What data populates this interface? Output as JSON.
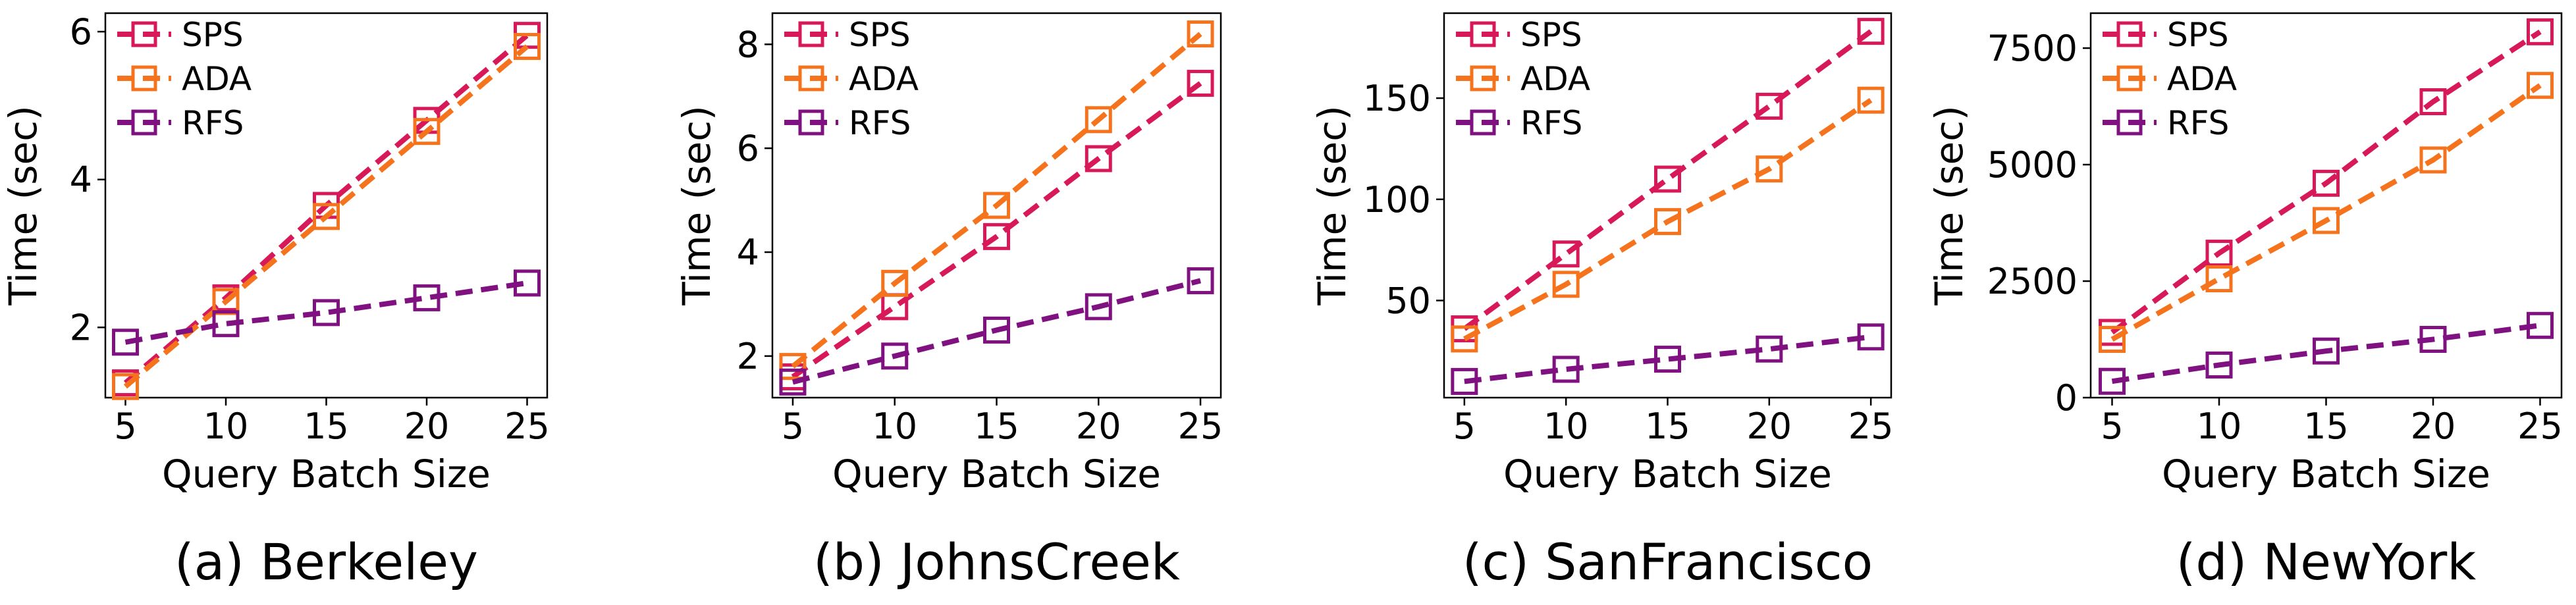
{
  "chart_data": [
    {
      "type": "line",
      "title": "(a) Berkeley",
      "xlabel": "Query Batch Size",
      "ylabel": "Time (sec)",
      "x": [
        5,
        10,
        15,
        20,
        25
      ],
      "xlim": [
        4,
        26
      ],
      "ylim": [
        1.05,
        6.25
      ],
      "yticks": [
        2,
        4,
        6
      ],
      "yticklabels": [
        "2",
        "4",
        "6"
      ],
      "legend_position": "top-left",
      "series": [
        {
          "name": "SPS",
          "color": "#d7195a",
          "values": [
            1.25,
            2.4,
            3.65,
            4.8,
            5.95
          ]
        },
        {
          "name": "ADA",
          "color": "#f5731c",
          "values": [
            1.2,
            2.35,
            3.5,
            4.65,
            5.8
          ]
        },
        {
          "name": "RFS",
          "color": "#7f1180",
          "values": [
            1.8,
            2.05,
            2.2,
            2.4,
            2.6
          ]
        }
      ]
    },
    {
      "type": "line",
      "title": "(b) JohnsCreek",
      "xlabel": "Query Batch Size",
      "ylabel": "Time (sec)",
      "x": [
        5,
        10,
        15,
        20,
        25
      ],
      "xlim": [
        4,
        26
      ],
      "ylim": [
        1.2,
        8.6
      ],
      "yticks": [
        2,
        4,
        6,
        8
      ],
      "yticklabels": [
        "2",
        "4",
        "6",
        "8"
      ],
      "legend_position": "top-left",
      "series": [
        {
          "name": "SPS",
          "color": "#d7195a",
          "values": [
            1.6,
            2.95,
            4.3,
            5.8,
            7.25
          ]
        },
        {
          "name": "ADA",
          "color": "#f5731c",
          "values": [
            1.8,
            3.4,
            4.9,
            6.55,
            8.2
          ]
        },
        {
          "name": "RFS",
          "color": "#7f1180",
          "values": [
            1.5,
            2.0,
            2.5,
            2.95,
            3.45
          ]
        }
      ]
    },
    {
      "type": "line",
      "title": "(c) SanFrancisco",
      "xlabel": "Query Batch Size",
      "ylabel": "Time (sec)",
      "x": [
        5,
        10,
        15,
        20,
        25
      ],
      "xlim": [
        4,
        26
      ],
      "ylim": [
        2,
        192
      ],
      "yticks": [
        50,
        100,
        150
      ],
      "yticklabels": [
        "50",
        "100",
        "150"
      ],
      "legend_position": "top-left",
      "series": [
        {
          "name": "SPS",
          "color": "#d7195a",
          "values": [
            36,
            73,
            110,
            146,
            183
          ]
        },
        {
          "name": "ADA",
          "color": "#f5731c",
          "values": [
            31,
            58,
            89,
            115,
            149
          ]
        },
        {
          "name": "RFS",
          "color": "#7f1180",
          "values": [
            10,
            16,
            21,
            26,
            32
          ]
        }
      ]
    },
    {
      "type": "line",
      "title": "(d) NewYork",
      "xlabel": "Query Batch Size",
      "ylabel": "Time (sec)",
      "x": [
        5,
        10,
        15,
        20,
        25
      ],
      "xlim": [
        4,
        26
      ],
      "ylim": [
        0,
        8250
      ],
      "yticks": [
        0,
        2500,
        5000,
        7500
      ],
      "yticklabels": [
        "0",
        "2500",
        "5000",
        "7500"
      ],
      "legend_position": "top-left",
      "series": [
        {
          "name": "SPS",
          "color": "#d7195a",
          "values": [
            1400,
            3100,
            4600,
            6350,
            7850
          ]
        },
        {
          "name": "ADA",
          "color": "#f5731c",
          "values": [
            1250,
            2550,
            3800,
            5100,
            6700
          ]
        },
        {
          "name": "RFS",
          "color": "#7f1180",
          "values": [
            350,
            700,
            1000,
            1250,
            1550
          ]
        }
      ]
    }
  ]
}
